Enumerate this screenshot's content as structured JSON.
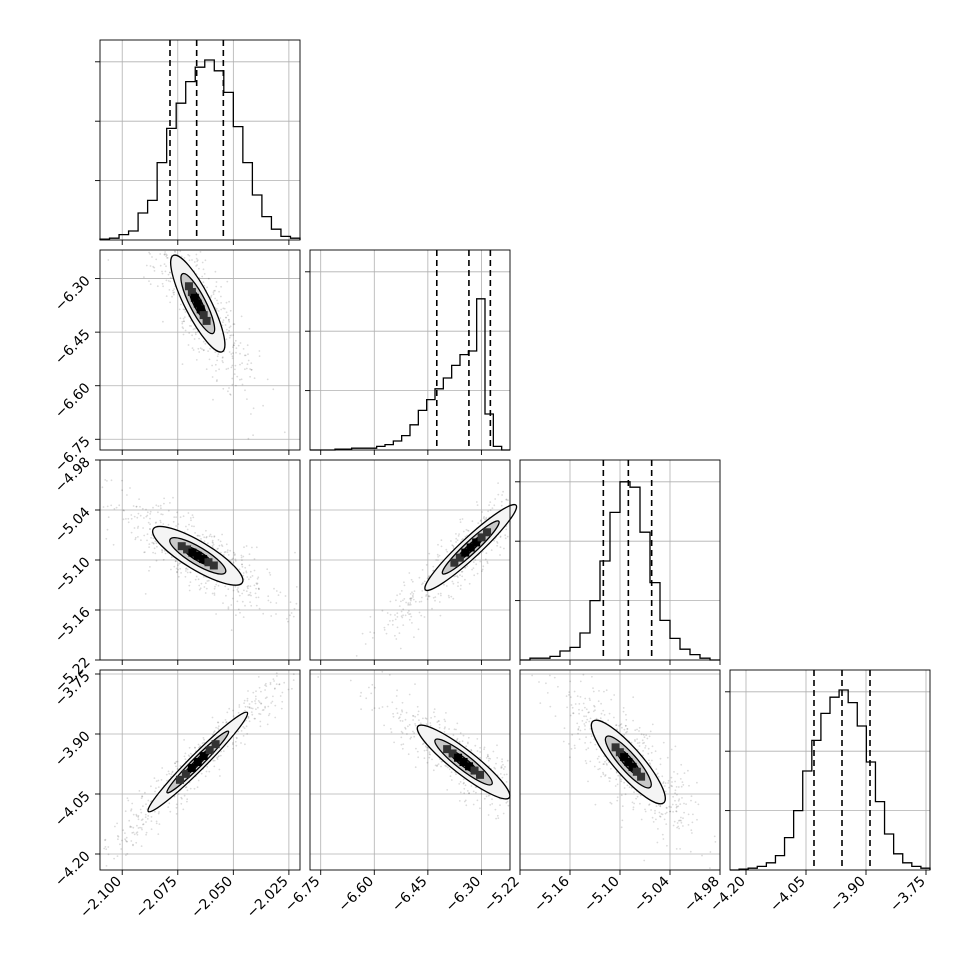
{
  "chart_data": {
    "type": "corner",
    "grid": true,
    "parameters": [
      {
        "range": [
          -2.11,
          -2.02
        ],
        "ticks": [
          -2.1,
          -2.075,
          -2.05,
          -2.025
        ],
        "tick_labels": [
          "−2.100",
          "−2.075",
          "−2.050",
          "−2.025"
        ]
      },
      {
        "range": [
          -6.78,
          -6.22
        ],
        "ticks": [
          -6.75,
          -6.6,
          -6.45,
          -6.3
        ],
        "tick_labels": [
          "−6.75",
          "−6.60",
          "−6.45",
          "−6.30"
        ]
      },
      {
        "range": [
          -5.22,
          -4.98
        ],
        "ticks": [
          -5.22,
          -5.16,
          -5.1,
          -5.04,
          -4.98
        ],
        "tick_labels": [
          "−5.22",
          "−5.16",
          "−5.10",
          "−5.04",
          "−4.98"
        ]
      },
      {
        "range": [
          -4.24,
          -3.74
        ],
        "ticks": [
          -4.2,
          -4.05,
          -3.9,
          -3.75
        ],
        "tick_labels": [
          "−4.20",
          "−4.05",
          "−3.90",
          "−3.75"
        ]
      }
    ],
    "histograms": [
      {
        "quantiles": [
          -2.0785,
          -2.0665,
          -2.0545
        ],
        "counts": [
          0.005,
          0.01,
          0.03,
          0.05,
          0.15,
          0.22,
          0.43,
          0.62,
          0.76,
          0.88,
          0.96,
          1.0,
          0.94,
          0.82,
          0.63,
          0.43,
          0.25,
          0.13,
          0.06,
          0.02,
          0.01
        ]
      },
      {
        "quantiles": [
          -6.425,
          -6.335,
          -6.275
        ],
        "counts": [
          0.0,
          0.0,
          0.0,
          0.005,
          0.005,
          0.01,
          0.01,
          0.01,
          0.02,
          0.03,
          0.05,
          0.08,
          0.14,
          0.22,
          0.28,
          0.34,
          0.4,
          0.47,
          0.53,
          0.55,
          0.84,
          0.2,
          0.02,
          0.0
        ]
      },
      {
        "quantiles": [
          -5.12,
          -5.09,
          -5.062
        ],
        "counts": [
          0.0,
          0.01,
          0.01,
          0.02,
          0.05,
          0.07,
          0.15,
          0.33,
          0.55,
          0.82,
          0.99,
          0.96,
          0.71,
          0.43,
          0.22,
          0.12,
          0.06,
          0.03,
          0.01,
          0.0
        ]
      },
      {
        "quantiles": [
          -4.03,
          -3.96,
          -3.89
        ],
        "counts": [
          0.0,
          0.005,
          0.01,
          0.02,
          0.04,
          0.08,
          0.18,
          0.33,
          0.55,
          0.72,
          0.87,
          0.96,
          1.0,
          0.93,
          0.8,
          0.6,
          0.38,
          0.2,
          0.09,
          0.04,
          0.02,
          0.01
        ]
      }
    ],
    "pairs": [
      {
        "row": 1,
        "col": 0,
        "center": [
          -2.066,
          -6.37
        ],
        "angle": -63,
        "axes": [
          0.27,
          0.065
        ]
      },
      {
        "row": 2,
        "col": 0,
        "center": [
          -2.066,
          -5.095
        ],
        "angle": -31,
        "axes": [
          0.26,
          0.07
        ]
      },
      {
        "row": 3,
        "col": 0,
        "center": [
          -2.066,
          -3.97
        ],
        "angle": 45,
        "axes": [
          0.35,
          0.04
        ]
      },
      {
        "row": 2,
        "col": 1,
        "center": [
          -6.33,
          -5.085
        ],
        "angle": 43,
        "axes": [
          0.31,
          0.05
        ]
      },
      {
        "row": 3,
        "col": 1,
        "center": [
          -6.35,
          -3.97
        ],
        "angle": -38,
        "axes": [
          0.29,
          0.06
        ]
      },
      {
        "row": 3,
        "col": 2,
        "center": [
          -5.09,
          -3.97
        ],
        "angle": -49,
        "axes": [
          0.27,
          0.07
        ]
      }
    ]
  }
}
